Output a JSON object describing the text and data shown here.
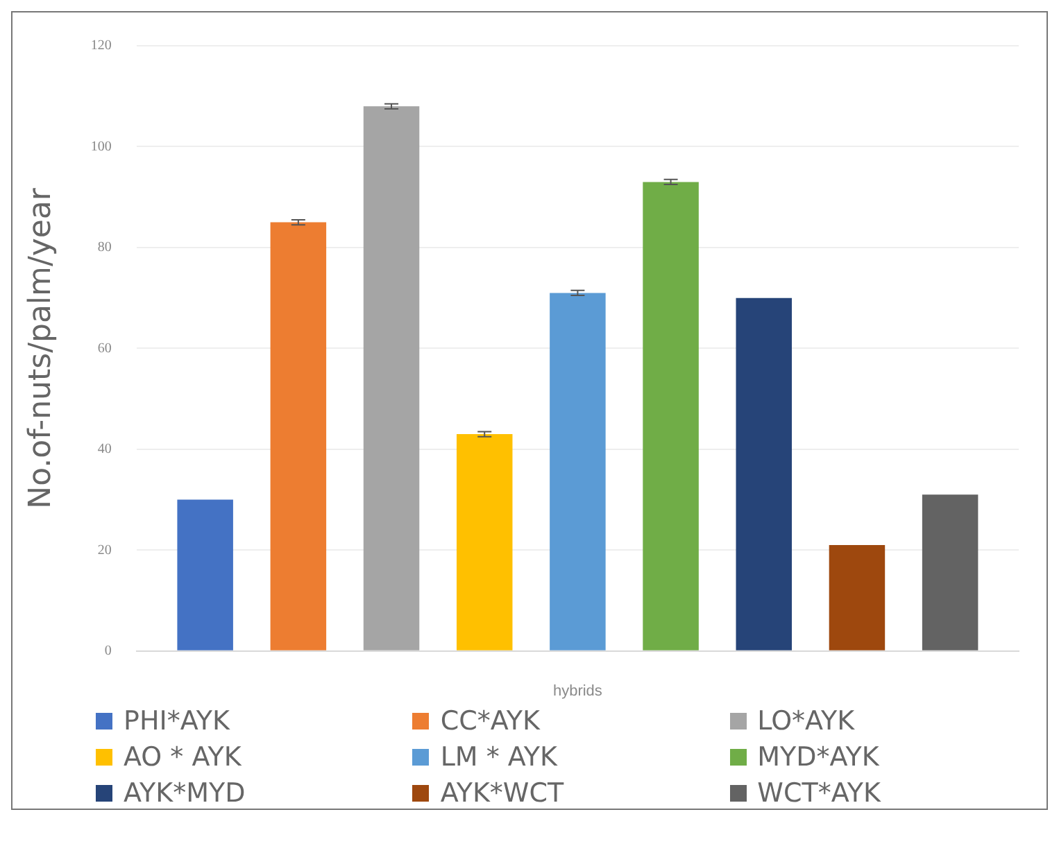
{
  "chart_data": {
    "type": "bar",
    "xlabel": "hybrids",
    "ylabel": "No.of-nuts/palm/year",
    "categories": [
      null
    ],
    "series": [
      {
        "name": "PHI*AYK",
        "color": "#4472c4",
        "values": [
          30
        ]
      },
      {
        "name": "CC*AYK",
        "color": "#ed7d31",
        "values": [
          85
        ],
        "errors": [
          0.5
        ]
      },
      {
        "name": "LO*AYK",
        "color": "#a5a5a5",
        "values": [
          108
        ],
        "errors": [
          0.5
        ]
      },
      {
        "name": "AO * AYK",
        "color": "#ffc000",
        "values": [
          43
        ],
        "errors": [
          0.5
        ]
      },
      {
        "name": "LM * AYK",
        "color": "#5b9bd5",
        "values": [
          71
        ],
        "errors": [
          0.5
        ]
      },
      {
        "name": "MYD*AYK",
        "color": "#70ad47",
        "values": [
          93
        ],
        "errors": [
          0.5
        ]
      },
      {
        "name": "AYK*MYD",
        "color": "#264478",
        "values": [
          70
        ]
      },
      {
        "name": "AYK*WCT",
        "color": "#9e480e",
        "values": [
          21
        ]
      },
      {
        "name": "WCT*AYK",
        "color": "#636363",
        "values": [
          31
        ]
      }
    ],
    "ylim": [
      0,
      120
    ],
    "yticks": [
      0,
      20,
      40,
      60,
      80,
      100,
      120
    ],
    "grid": "y",
    "legend": "bottom"
  }
}
